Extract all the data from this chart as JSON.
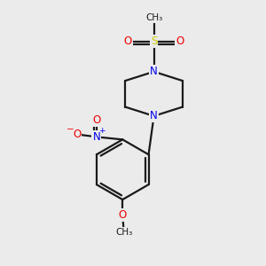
{
  "bg_color": "#ebebeb",
  "bond_color": "#1a1a1a",
  "line_width": 1.6,
  "atom_colors": {
    "N": "#0000ee",
    "O": "#ee0000",
    "S": "#cccc00",
    "C": "#1a1a1a"
  },
  "font_size_atom": 8.5,
  "font_size_methyl": 7.5,
  "figsize": [
    3.0,
    3.0
  ],
  "dpi": 100
}
